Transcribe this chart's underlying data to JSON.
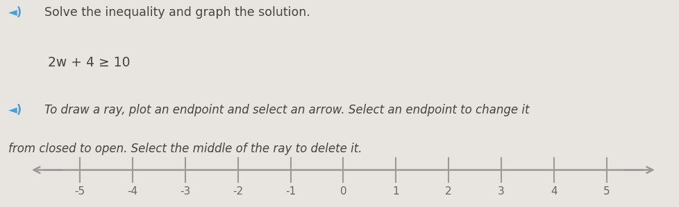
{
  "background_color": "#e8e4df",
  "line_color": "#999999",
  "tick_color": "#999999",
  "label_color": "#666666",
  "text_color": "#444444",
  "speaker_color": "#4a9fd4",
  "equation": "2w + 4 ≥ 10",
  "title_text": "Solve the inequality and graph the solution.",
  "instruction_line1": "To draw a ray, plot an endpoint and select an arrow. Select an endpoint to change it",
  "instruction_line2": "from closed to open. Select the middle of the ray to delete it.",
  "tick_positions": [
    -5,
    -4,
    -3,
    -2,
    -1,
    0,
    1,
    2,
    3,
    4,
    5
  ],
  "tick_labels": [
    "-5",
    "-4",
    "-3",
    "-2",
    "-1",
    "0",
    "1",
    "2",
    "3",
    "4",
    "5"
  ],
  "xlim": [
    -6.0,
    6.0
  ],
  "figsize": [
    9.79,
    2.99
  ],
  "dpi": 100
}
